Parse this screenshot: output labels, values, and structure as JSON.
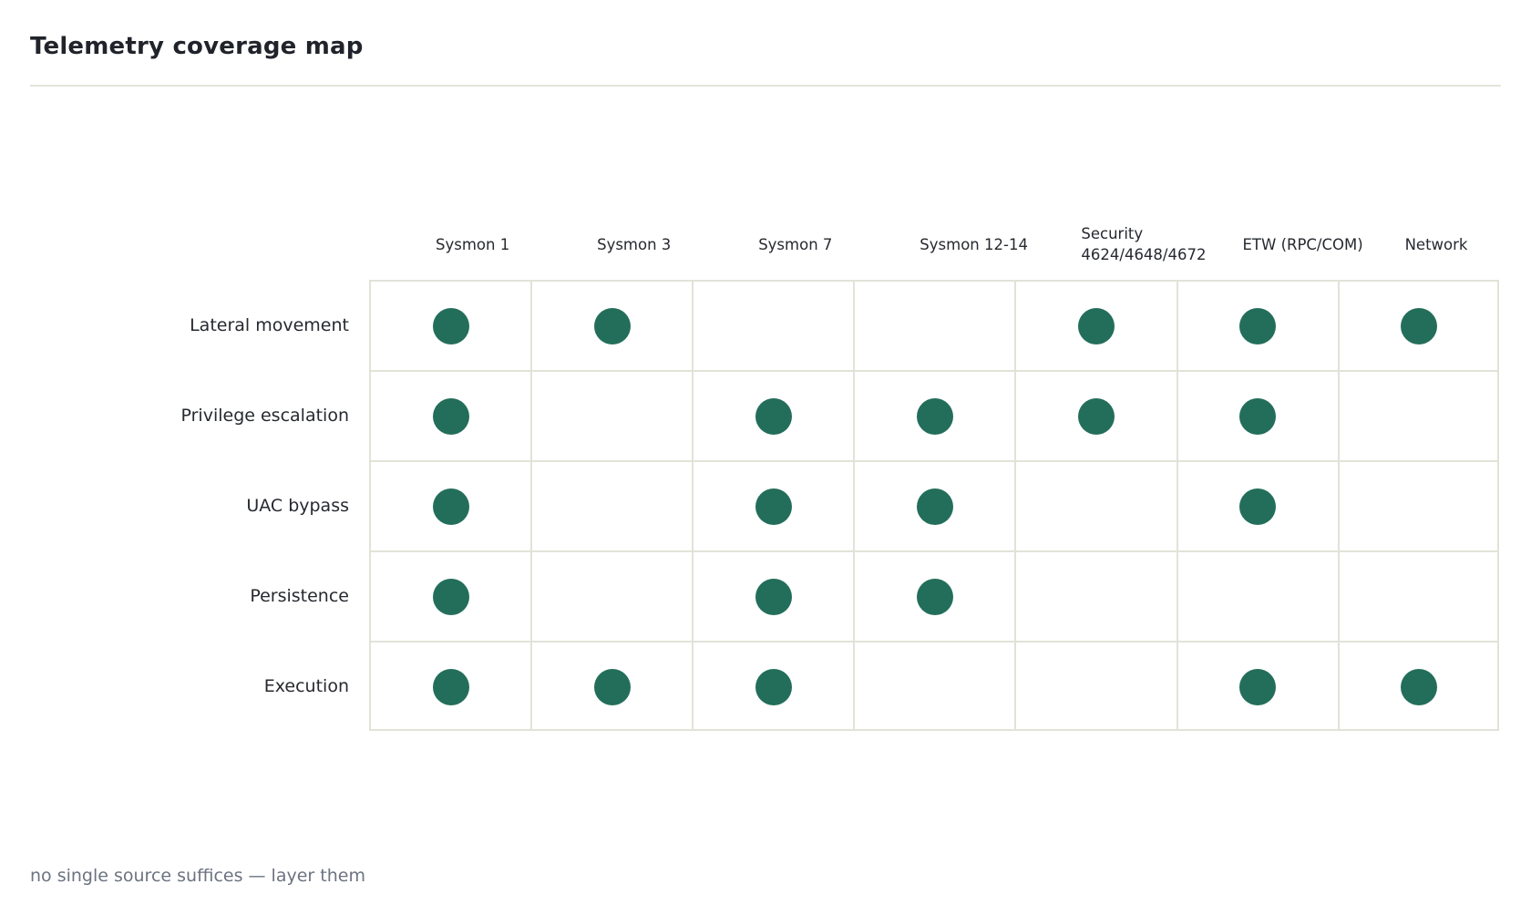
{
  "page": {
    "title": "Telemetry coverage map",
    "footnote": "no single source suffices — layer them"
  },
  "matrix": {
    "columns": [
      {
        "lines": [
          "Sysmon 1"
        ]
      },
      {
        "lines": [
          "Sysmon 3"
        ]
      },
      {
        "lines": [
          "Sysmon 7"
        ]
      },
      {
        "lines": [
          "Sysmon 12-14"
        ]
      },
      {
        "lines": [
          "Security",
          "4624/4648/4672"
        ]
      },
      {
        "lines": [
          "ETW (RPC/COM)"
        ]
      },
      {
        "lines": [
          "Network"
        ]
      }
    ],
    "rows": [
      {
        "label": "Lateral movement",
        "coverage": [
          true,
          true,
          false,
          false,
          true,
          true,
          true
        ]
      },
      {
        "label": "Privilege escalation",
        "coverage": [
          true,
          false,
          true,
          true,
          true,
          true,
          false
        ]
      },
      {
        "label": "UAC bypass",
        "coverage": [
          true,
          false,
          true,
          true,
          false,
          true,
          false
        ]
      },
      {
        "label": "Persistence",
        "coverage": [
          true,
          false,
          true,
          true,
          false,
          false,
          false
        ]
      },
      {
        "label": "Execution",
        "coverage": [
          true,
          true,
          true,
          false,
          false,
          true,
          true
        ]
      }
    ],
    "dot_color": "#236e5a",
    "grid_color": "#e2e2d9"
  }
}
